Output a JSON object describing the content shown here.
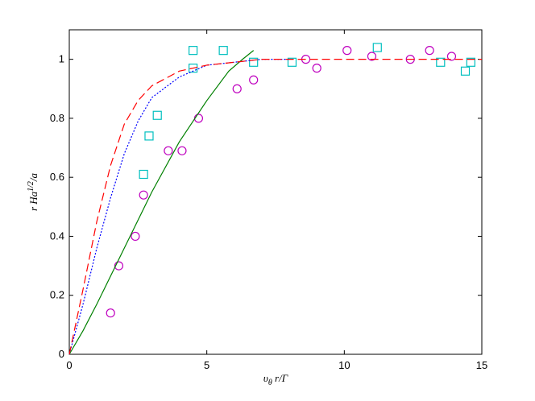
{
  "chart_data": {
    "type": "scatter",
    "xlabel": [
      "υ",
      "θ",
      " r/Γ"
    ],
    "ylabel": [
      "r Ha",
      "1/2",
      "/a"
    ],
    "xlim": [
      0,
      15
    ],
    "ylim": [
      0,
      1.1
    ],
    "xticks": [
      0,
      5,
      10,
      15
    ],
    "yticks": [
      0,
      0.2,
      0.4,
      0.6,
      0.8,
      1
    ],
    "series": [
      {
        "style": "circle",
        "color": "#bf00bf",
        "x": [
          1.5,
          1.8,
          2.4,
          2.7,
          3.6,
          4.1,
          4.7,
          6.1,
          6.7,
          8.6,
          9.0,
          10.1,
          11.0,
          12.4,
          13.1,
          13.9
        ],
        "values": [
          0.14,
          0.3,
          0.4,
          0.54,
          0.69,
          0.69,
          0.8,
          0.9,
          0.93,
          1.0,
          0.97,
          1.03,
          1.01,
          1.0,
          1.03,
          1.01
        ]
      },
      {
        "style": "square",
        "color": "#00bfbf",
        "x": [
          2.7,
          2.9,
          3.2,
          4.5,
          4.5,
          5.6,
          6.7,
          8.1,
          11.2,
          13.5,
          14.4,
          14.6
        ],
        "values": [
          0.61,
          0.74,
          0.81,
          0.97,
          1.03,
          1.03,
          0.99,
          0.99,
          1.04,
          0.99,
          0.96,
          0.99
        ]
      },
      {
        "style": "solid",
        "color": "#008000",
        "x": [
          0,
          0.5,
          1,
          2,
          3,
          4,
          5,
          5.8,
          6.3,
          6.7
        ],
        "values": [
          0,
          0.08,
          0.17,
          0.36,
          0.55,
          0.72,
          0.86,
          0.96,
          1.0,
          1.03
        ]
      },
      {
        "style": "dotted",
        "color": "#0000ff",
        "x": [
          0,
          0.5,
          1,
          1.5,
          2,
          2.5,
          3,
          4,
          5,
          6,
          7,
          8
        ],
        "values": [
          0,
          0.17,
          0.36,
          0.53,
          0.68,
          0.79,
          0.87,
          0.94,
          0.98,
          0.99,
          1.0,
          1.0
        ]
      },
      {
        "style": "dashed",
        "color": "#ff0000",
        "x": [
          0,
          0.5,
          1,
          1.5,
          2,
          2.5,
          3,
          4,
          5,
          6,
          7,
          10,
          15
        ],
        "values": [
          0,
          0.22,
          0.45,
          0.64,
          0.78,
          0.86,
          0.91,
          0.96,
          0.98,
          0.99,
          1.0,
          1.0,
          1.0
        ]
      }
    ]
  }
}
